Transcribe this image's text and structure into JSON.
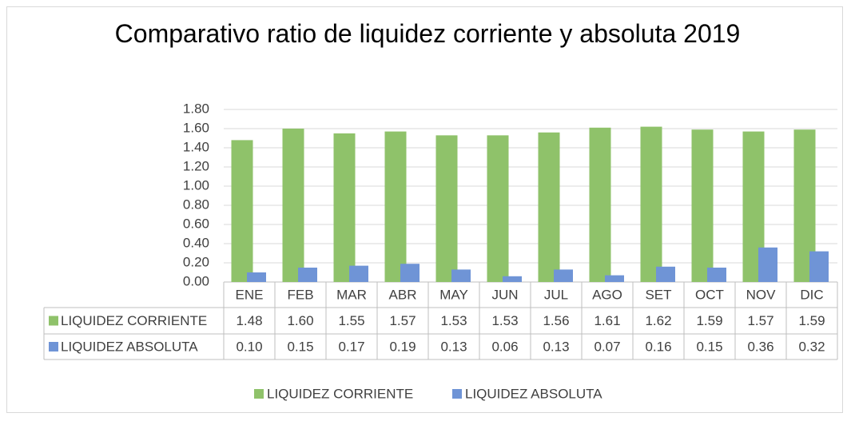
{
  "chart_data": {
    "type": "bar",
    "title": "Comparativo ratio de liquidez corriente y absoluta 2019",
    "categories": [
      "ENE",
      "FEB",
      "MAR",
      "ABR",
      "MAY",
      "JUN",
      "JUL",
      "AGO",
      "SET",
      "OCT",
      "NOV",
      "DIC"
    ],
    "series": [
      {
        "name": "LIQUIDEZ CORRIENTE",
        "color": "#8fc26a",
        "values": [
          1.48,
          1.6,
          1.55,
          1.57,
          1.53,
          1.53,
          1.56,
          1.61,
          1.62,
          1.59,
          1.57,
          1.59
        ],
        "value_labels": [
          "1.48",
          "1.60",
          "1.55",
          "1.57",
          "1.53",
          "1.53",
          "1.56",
          "1.61",
          "1.62",
          "1.59",
          "1.57",
          "1.59"
        ]
      },
      {
        "name": "LIQUIDEZ ABSOLUTA",
        "color": "#6f94d6",
        "values": [
          0.1,
          0.15,
          0.17,
          0.19,
          0.13,
          0.06,
          0.13,
          0.07,
          0.16,
          0.15,
          0.36,
          0.32
        ],
        "value_labels": [
          "0.10",
          "0.15",
          "0.17",
          "0.19",
          "0.13",
          "0.06",
          "0.13",
          "0.07",
          "0.16",
          "0.15",
          "0.36",
          "0.32"
        ]
      }
    ],
    "ylim": [
      0,
      1.8
    ],
    "yticks": [
      {
        "value": 0,
        "label": "0.00"
      },
      {
        "value": 0.2,
        "label": "0.20"
      },
      {
        "value": 0.4,
        "label": "0.40"
      },
      {
        "value": 0.6,
        "label": "0.60"
      },
      {
        "value": 0.8,
        "label": "0.80"
      },
      {
        "value": 1.0,
        "label": "1.00"
      },
      {
        "value": 1.2,
        "label": "1.20"
      },
      {
        "value": 1.4,
        "label": "1.40"
      },
      {
        "value": 1.6,
        "label": "1.60"
      },
      {
        "value": 1.8,
        "label": "1.80"
      }
    ],
    "grid": true,
    "legend": "bottom"
  }
}
